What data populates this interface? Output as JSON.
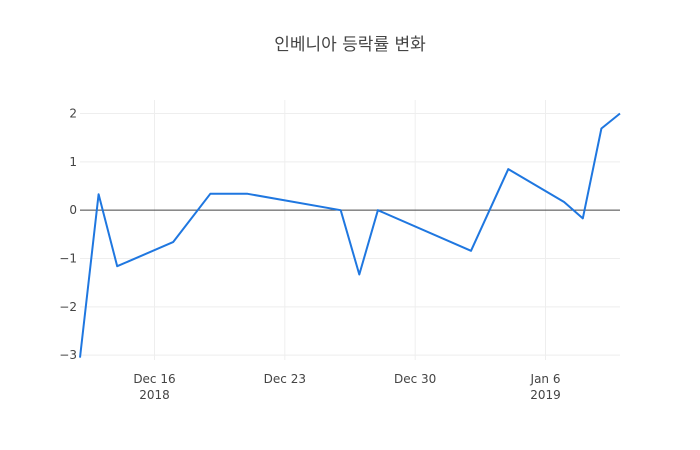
{
  "chart_data": {
    "type": "line",
    "title": "인베니아 등락률 변화",
    "xlabel": "",
    "ylabel": "",
    "ylim": [
      -3.1,
      2.28
    ],
    "xlim": [
      "2018-12-12",
      "2019-01-10"
    ],
    "grid": true,
    "line_color": "#1f77e0",
    "x_ticks": [
      {
        "date": "2018-12-16",
        "label": "Dec 16",
        "sublabel": "2018"
      },
      {
        "date": "2018-12-23",
        "label": "Dec 23",
        "sublabel": ""
      },
      {
        "date": "2018-12-30",
        "label": "Dec 30",
        "sublabel": ""
      },
      {
        "date": "2019-01-06",
        "label": "Jan 6",
        "sublabel": "2019"
      }
    ],
    "y_ticks": [
      {
        "value": 2,
        "label": "2"
      },
      {
        "value": 1,
        "label": "1"
      },
      {
        "value": 0,
        "label": "0"
      },
      {
        "value": -1,
        "label": "−1"
      },
      {
        "value": -2,
        "label": "−2"
      },
      {
        "value": -3,
        "label": "−3"
      }
    ],
    "series": [
      {
        "x": [
          "2018-12-12",
          "2018-12-13",
          "2018-12-14",
          "2018-12-17",
          "2018-12-19",
          "2018-12-21",
          "2018-12-26",
          "2018-12-27",
          "2018-12-28",
          "2019-01-02",
          "2019-01-04",
          "2019-01-07",
          "2019-01-08",
          "2019-01-09",
          "2019-01-10"
        ],
        "y": [
          -3.05,
          0.33,
          -1.16,
          -0.66,
          0.34,
          0.34,
          0.0,
          -1.33,
          0.0,
          -0.84,
          0.85,
          0.17,
          -0.17,
          1.69,
          2.0
        ]
      }
    ]
  }
}
